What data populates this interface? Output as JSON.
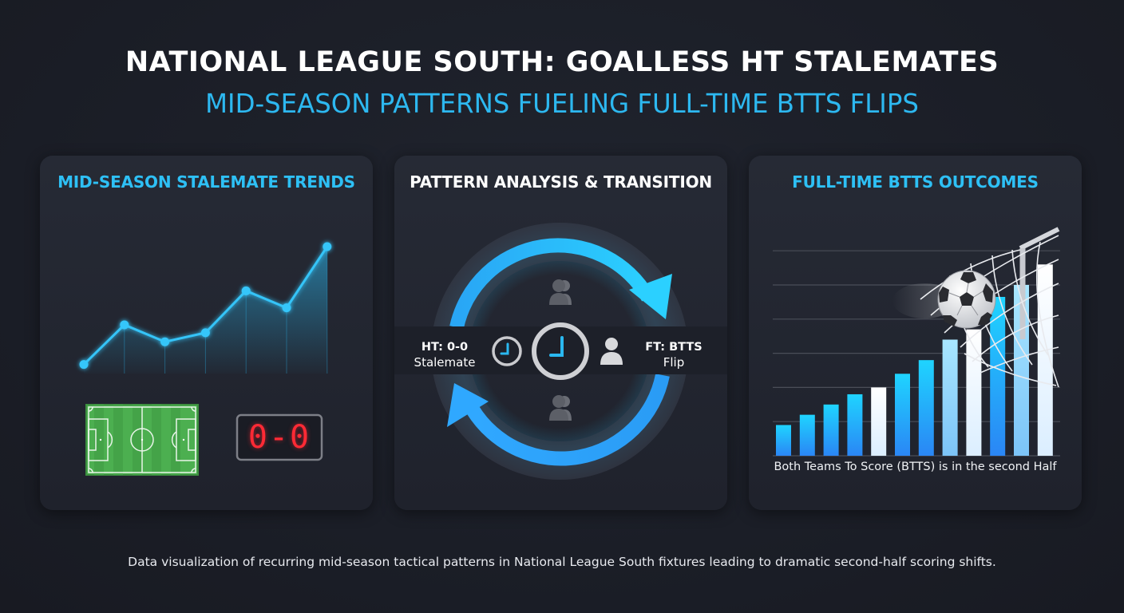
{
  "header": {
    "title": "NATIONAL LEAGUE SOUTH: GOALLESS HT STALEMATES",
    "subtitle": "MID-SEASON PATTERNS FUELING FULL-TIME BTTS FLIPS"
  },
  "colors": {
    "background": "#1b1e27",
    "panel": "#232733",
    "accent_blue": "#2ec0f5",
    "bar_blue_top": "#1fd0ff",
    "bar_blue_bottom": "#2a86f5",
    "scoreboard_red": "#ff2a35",
    "pitch_green": "#4caf50"
  },
  "panels": [
    {
      "title": "MID-SEASON STALEMATE TRENDS",
      "icons": [
        "football-pitch-icon",
        "scoreboard-icon"
      ],
      "scoreboard": {
        "score": "0-0"
      }
    },
    {
      "title": "PATTERN ANALYSIS & TRANSITION",
      "left_label": {
        "line1": "HT: 0-0",
        "line2": "Stalemate"
      },
      "right_label": {
        "line1": "FT: BTTS",
        "line2": "Flip"
      },
      "icons": [
        "cycle-arrows-icon",
        "clock-icon",
        "clock-large-icon",
        "person-icon",
        "group-icon"
      ]
    },
    {
      "title": "FULL-TIME BTTS OUTCOMES",
      "caption": "Both Teams To Score (BTTS) is in the second Half",
      "icons": [
        "soccer-ball-icon",
        "goal-net-icon"
      ]
    }
  ],
  "footer": {
    "caption": "Data visualization of recurring mid-season tactical patterns in National League South fixtures leading to dramatic second-half scoring shifts."
  },
  "chart_data": [
    {
      "type": "line",
      "title": "MID-SEASON STALEMATE TRENDS",
      "xlabel": "",
      "ylabel": "",
      "x": [
        1,
        2,
        3,
        4,
        5,
        6,
        7
      ],
      "values": [
        0.8,
        4.3,
        2.8,
        3.6,
        7.3,
        5.8,
        11.2
      ],
      "grid": false,
      "fill": "area-gradient",
      "note": "No axis tick labels shown; values estimated relative to baseline (arbitrary units)"
    },
    {
      "type": "bar",
      "title": "FULL-TIME BTTS OUTCOMES",
      "xlabel": "Both Teams To Score (BTTS) is in the second Half",
      "ylabel": "",
      "categories": [
        "1",
        "2",
        "3",
        "4",
        "5",
        "6",
        "7",
        "8",
        "9",
        "10",
        "11",
        "12"
      ],
      "values": [
        0.9,
        1.2,
        1.5,
        1.8,
        2.0,
        2.4,
        2.8,
        3.4,
        3.7,
        4.65,
        5.0,
        5.6
      ],
      "bar_styles": [
        "blue",
        "blue",
        "blue",
        "blue",
        "white",
        "blue",
        "blue",
        "light-blue",
        "white",
        "blue",
        "light-blue",
        "white"
      ],
      "ylim": [
        0,
        6
      ],
      "grid": true,
      "gridlines": 6,
      "note": "No tick labels shown; values in gridline units"
    }
  ]
}
